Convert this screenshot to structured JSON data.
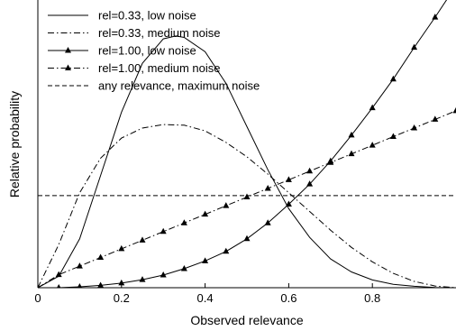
{
  "chart_data": {
    "type": "line",
    "title": "",
    "xlabel": "Observed relevance",
    "ylabel": "Relative probability",
    "xlim": [
      0,
      1
    ],
    "ylim": [
      0,
      1
    ],
    "grid": false,
    "legend_position": "top-left",
    "x_ticks": [
      0,
      0.2,
      0.4,
      0.6,
      0.8
    ],
    "x_tick_labels": [
      "0",
      "0.2",
      "0.4",
      "0.6",
      "0.8"
    ],
    "y_ticks": [],
    "series": [
      {
        "name": "rel=0.33, low noise",
        "style": "solid",
        "marker": "none",
        "x": [
          0,
          0.05,
          0.1,
          0.15,
          0.2,
          0.25,
          0.3,
          0.33,
          0.35,
          0.4,
          0.45,
          0.5,
          0.55,
          0.6,
          0.65,
          0.7,
          0.75,
          0.8,
          0.85,
          0.9,
          0.95,
          1.0
        ],
        "y": [
          0.0,
          0.04,
          0.17,
          0.39,
          0.61,
          0.78,
          0.865,
          0.875,
          0.87,
          0.82,
          0.71,
          0.56,
          0.41,
          0.275,
          0.175,
          0.1,
          0.055,
          0.027,
          0.012,
          0.005,
          0.001,
          0.0
        ]
      },
      {
        "name": "rel=0.33, medium noise",
        "style": "dashdot",
        "marker": "none",
        "x": [
          0,
          0.05,
          0.1,
          0.15,
          0.2,
          0.25,
          0.3,
          0.35,
          0.4,
          0.45,
          0.5,
          0.55,
          0.6,
          0.65,
          0.7,
          0.75,
          0.8,
          0.85,
          0.9,
          0.95,
          1.0
        ],
        "y": [
          0.0,
          0.15,
          0.33,
          0.45,
          0.52,
          0.555,
          0.567,
          0.565,
          0.545,
          0.505,
          0.455,
          0.395,
          0.33,
          0.265,
          0.2,
          0.14,
          0.09,
          0.05,
          0.022,
          0.006,
          0.0
        ]
      },
      {
        "name": "rel=1.00, low noise",
        "style": "solid",
        "marker": "triangle",
        "x": [
          0,
          0.05,
          0.1,
          0.15,
          0.2,
          0.25,
          0.3,
          0.35,
          0.4,
          0.45,
          0.5,
          0.55,
          0.6,
          0.65,
          0.7,
          0.75,
          0.8,
          0.85,
          0.9,
          0.95,
          1.0
        ],
        "y": [
          0.0,
          0.0,
          0.003,
          0.008,
          0.016,
          0.028,
          0.044,
          0.066,
          0.093,
          0.126,
          0.17,
          0.225,
          0.29,
          0.36,
          0.44,
          0.53,
          0.625,
          0.725,
          0.835,
          0.94,
          1.05
        ]
      },
      {
        "name": "rel=1.00, medium noise",
        "style": "dashdot",
        "marker": "triangle",
        "x": [
          0,
          0.05,
          0.1,
          0.15,
          0.2,
          0.25,
          0.3,
          0.35,
          0.4,
          0.45,
          0.5,
          0.55,
          0.6,
          0.65,
          0.7,
          0.75,
          0.8,
          0.85,
          0.9,
          0.95,
          1.0
        ],
        "y": [
          0.0,
          0.045,
          0.075,
          0.105,
          0.135,
          0.165,
          0.195,
          0.225,
          0.255,
          0.285,
          0.315,
          0.345,
          0.375,
          0.405,
          0.435,
          0.465,
          0.495,
          0.525,
          0.555,
          0.585,
          0.615
        ]
      },
      {
        "name": "any relevance, maximum noise",
        "style": "dashed",
        "marker": "none",
        "x": [
          0,
          1.0
        ],
        "y": [
          0.32,
          0.32
        ]
      }
    ]
  }
}
